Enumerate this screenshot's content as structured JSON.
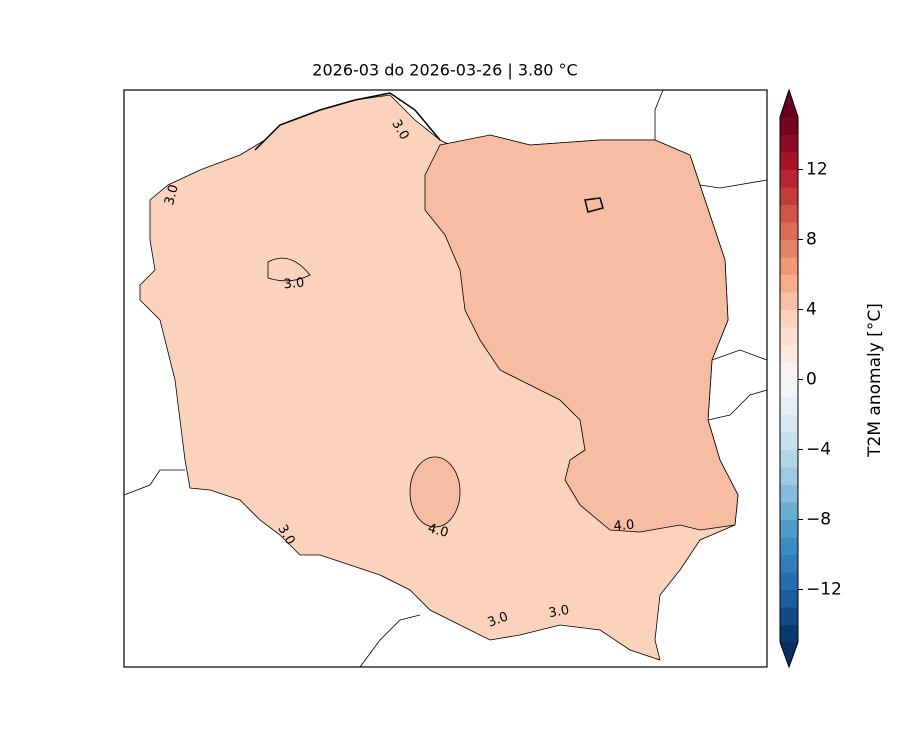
{
  "map": {
    "title": "2026-03 do 2026-03-26 | 3.80 °C",
    "colorbar": {
      "label": "T2M anomaly [°C]",
      "colormap": "RdBu_r",
      "clim": [
        -15,
        15
      ],
      "step": 1,
      "ticks": [
        {
          "value": -12,
          "label": "−12"
        },
        {
          "value": -8,
          "label": "−8"
        },
        {
          "value": -4,
          "label": "−4"
        },
        0,
        4,
        8,
        12
      ]
    },
    "contour_labels": [
      {
        "value": 3,
        "label": "3.0"
      },
      {
        "value": 3,
        "label": "3.0"
      },
      {
        "value": 3,
        "label": "3.0"
      },
      {
        "value": 3,
        "label": "3.0"
      },
      {
        "value": 3,
        "label": "3.0"
      },
      {
        "value": 3,
        "label": "3.0"
      },
      {
        "value": 4,
        "label": "4.0"
      },
      {
        "value": 4,
        "label": "4.0"
      }
    ]
  }
}
